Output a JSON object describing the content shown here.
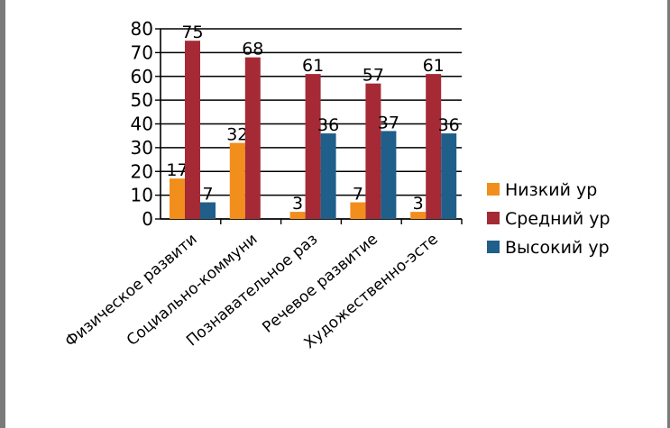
{
  "chart_data": {
    "type": "bar",
    "categories": [
      "Физическое развити",
      "Социально-коммуни",
      "Познавательное раз",
      "Речевое развитие",
      "Художественно-эсте"
    ],
    "series": [
      {
        "name": "Низкий ур",
        "color": "#f28e1c",
        "values": [
          17,
          32,
          3,
          7,
          3
        ]
      },
      {
        "name": "Средний ур",
        "color": "#a52a35",
        "values": [
          75,
          68,
          61,
          57,
          61
        ]
      },
      {
        "name": "Высокий ур",
        "color": "#1f5f8a",
        "values": [
          7,
          0,
          36,
          37,
          36
        ]
      }
    ],
    "data_labels": [
      [
        "17",
        "32",
        "3",
        "7",
        "3"
      ],
      [
        "75",
        "68",
        "61",
        "57",
        "61"
      ],
      [
        "7",
        "",
        "36",
        "37",
        "36"
      ]
    ],
    "y_ticks": [
      "0",
      "10",
      "20",
      "30",
      "40",
      "50",
      "60",
      "70",
      "80"
    ],
    "ylim": [
      0,
      80
    ],
    "grid": true,
    "legend_position": "right",
    "title": "",
    "xlabel": "",
    "ylabel": ""
  }
}
